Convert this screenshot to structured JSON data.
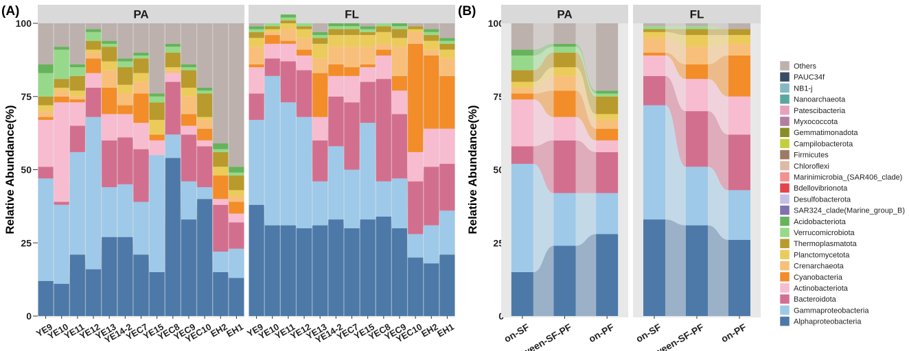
{
  "panel_labels": [
    "(A)",
    "(B)"
  ],
  "colors": {
    "Others": "#bcb1ad",
    "PAUC34f": "#3c4c66",
    "NB1-j": "#86b8c4",
    "Nanoarchaeota": "#5aa79f",
    "Patescibacteria": "#e6a1bd",
    "Myxococcota": "#b27ea1",
    "Gemmatimonadota": "#8a8d26",
    "Campilobacterota": "#c3cf3d",
    "Firmicutes": "#9c7a66",
    "Chloroflexi": "#dbbba6",
    "Marinimicrobia_(SAR406_clade)": "#f2918f",
    "Bdellovibrionota": "#e3454a",
    "Desulfobacterota": "#c3bfe5",
    "SAR324_clade(Marine_group_B)": "#7f72ae",
    "Acidobacteriota": "#67b35b",
    "Verrucomicrobiota": "#97d98a",
    "Thermoplasmatota": "#b99a2d",
    "Planctomycetota": "#ebcc5b",
    "Crenarchaeota": "#f8bf7b",
    "Cyanobacteria": "#f28d2a",
    "Actinobacteriota": "#f7bccf",
    "Bacteroidota": "#d36f8e",
    "Gammaproteobacteria": "#9ec9e8",
    "Alphaproteobacteria": "#4d79a8"
  },
  "chart_data": [
    {
      "type": "area",
      "panel": "(A)",
      "facets": [
        "PA",
        "FL"
      ],
      "ylabel": "Relative Abundance(%)",
      "ylim": [
        0,
        100
      ],
      "yticks": [
        0,
        25,
        50,
        75,
        100
      ],
      "categories": [
        "YE9",
        "YE10",
        "YE11",
        "YE12",
        "YE13",
        "YE14-2",
        "YEC7",
        "YE15",
        "YEC8",
        "YEC9",
        "YEC10",
        "EH2",
        "EH1"
      ],
      "stack_order": [
        "Alphaproteobacteria",
        "Gammaproteobacteria",
        "Bacteroidota",
        "Actinobacteriota",
        "Cyanobacteria",
        "Crenarchaeota",
        "Planctomycetota",
        "Thermoplasmatota",
        "Verrucomicrobiota",
        "Acidobacteriota",
        "Others"
      ],
      "series": {
        "PA": [
          {
            "name": "Alphaproteobacteria",
            "values": [
              12,
              11,
              21,
              16,
              27,
              27,
              21,
              15,
              54,
              33,
              40,
              15,
              13
            ]
          },
          {
            "name": "Gammaproteobacteria",
            "values": [
              35,
              27,
              35,
              52,
              17,
              18,
              18,
              40,
              8,
              13,
              4,
              7,
              10
            ]
          },
          {
            "name": "Bacteroidota",
            "values": [
              4,
              1,
              9,
              10,
              16,
              16,
              18,
              0,
              18,
              16,
              14,
              16,
              9
            ]
          },
          {
            "name": "Actinobacteriota",
            "values": [
              16,
              34,
              8,
              5,
              9,
              8,
              9,
              5,
              3,
              3,
              2,
              2,
              3
            ]
          },
          {
            "name": "Cyanobacteria",
            "values": [
              1,
              2,
              1,
              5,
              9,
              3,
              10,
              2,
              0,
              4,
              4,
              8,
              4
            ]
          },
          {
            "name": "Crenarchaeota",
            "values": [
              2,
              2,
              1,
              2,
              6,
              4,
              4,
              0,
              1,
              6,
              3,
              0,
              2
            ]
          },
          {
            "name": "Planctomycetota",
            "values": [
              2,
              1,
              2,
              1,
              3,
              3,
              3,
              5,
              1,
              3,
              1,
              3,
              2
            ]
          },
          {
            "name": "Thermoplasmatota",
            "values": [
              3,
              3,
              5,
              3,
              5,
              6,
              5,
              6,
              5,
              6,
              8,
              5,
              5
            ]
          },
          {
            "name": "Verrucomicrobiota",
            "values": [
              8,
              10,
              3,
              3,
              1,
              2,
              1,
              2,
              2,
              1,
              1,
              1,
              1
            ]
          },
          {
            "name": "Acidobacteriota",
            "values": [
              3,
              1,
              1,
              1,
              1,
              1,
              1,
              1,
              1,
              1,
              1,
              2,
              2
            ]
          },
          {
            "name": "Others",
            "values": [
              14,
              8,
              14,
              2,
              6,
              12,
              10,
              24,
              7,
              14,
              22,
              41,
              49
            ]
          }
        ],
        "FL": [
          {
            "name": "Alphaproteobacteria",
            "values": [
              38,
              31,
              31,
              30,
              31,
              33,
              30,
              33,
              34,
              30,
              20,
              18,
              21
            ]
          },
          {
            "name": "Gammaproteobacteria",
            "values": [
              29,
              51,
              42,
              38,
              15,
              25,
              20,
              33,
              12,
              17,
              8,
              13,
              15
            ]
          },
          {
            "name": "Bacteroidota",
            "values": [
              9,
              6,
              14,
              16,
              14,
              17,
              23,
              14,
              35,
              22,
              18,
              20,
              16
            ]
          },
          {
            "name": "Actinobacteriota",
            "values": [
              9,
              5,
              6,
              5,
              8,
              7,
              9,
              5,
              8,
              8,
              10,
              13,
              12
            ]
          },
          {
            "name": "Cyanobacteria",
            "values": [
              1,
              3,
              1,
              2,
              15,
              4,
              3,
              1,
              2,
              5,
              37,
              25,
              18
            ]
          },
          {
            "name": "Crenarchaeota",
            "values": [
              6,
              1,
              4,
              4,
              5,
              6,
              7,
              6,
              2,
              10,
              4,
              2,
              6
            ]
          },
          {
            "name": "Planctomycetota",
            "values": [
              3,
              1,
              2,
              3,
              5,
              4,
              4,
              4,
              4,
              3,
              1,
              3,
              3
            ]
          },
          {
            "name": "Thermoplasmatota",
            "values": [
              2,
              1,
              1,
              1,
              2,
              2,
              2,
              1,
              2,
              3,
              1,
              2,
              2
            ]
          },
          {
            "name": "Verrucomicrobiota",
            "values": [
              1,
              1,
              1,
              1,
              1,
              1,
              1,
              1,
              1,
              1,
              0,
              1,
              1
            ]
          },
          {
            "name": "Acidobacteriota",
            "values": [
              1,
              0,
              1,
              0,
              1,
              1,
              1,
              1,
              0,
              1,
              0,
              1,
              1
            ]
          },
          {
            "name": "Others",
            "values": [
              1,
              0,
              0,
              0,
              3,
              0,
              0,
              1,
              0,
              0,
              1,
              2,
              5
            ]
          }
        ]
      }
    },
    {
      "type": "area",
      "panel": "(B)",
      "facets": [
        "PA",
        "FL"
      ],
      "ylabel": "Relative Abundance(%)",
      "ylim": [
        0,
        100
      ],
      "yticks": [
        0,
        25,
        50,
        75,
        100
      ],
      "categories": [
        "on-SF",
        "between-SF-PF",
        "on-PF"
      ],
      "stack_order": [
        "Alphaproteobacteria",
        "Gammaproteobacteria",
        "Bacteroidota",
        "Actinobacteriota",
        "Cyanobacteria",
        "Crenarchaeota",
        "Planctomycetota",
        "Thermoplasmatota",
        "Verrucomicrobiota",
        "Acidobacteriota",
        "Others"
      ],
      "series": {
        "PA": [
          {
            "name": "Alphaproteobacteria",
            "values": [
              15,
              24,
              28
            ]
          },
          {
            "name": "Gammaproteobacteria",
            "values": [
              37,
              18,
              14
            ]
          },
          {
            "name": "Bacteroidota",
            "values": [
              6,
              18,
              14
            ]
          },
          {
            "name": "Actinobacteriota",
            "values": [
              16,
              8,
              4
            ]
          },
          {
            "name": "Cyanobacteria",
            "values": [
              2,
              9,
              4
            ]
          },
          {
            "name": "Crenarchaeota",
            "values": [
              2,
              5,
              3
            ]
          },
          {
            "name": "Planctomycetota",
            "values": [
              2,
              3,
              2
            ]
          },
          {
            "name": "Thermoplasmatota",
            "values": [
              4,
              5,
              6
            ]
          },
          {
            "name": "Verrucomicrobiota",
            "values": [
              5,
              2,
              1
            ]
          },
          {
            "name": "Acidobacteriota",
            "values": [
              2,
              1,
              1
            ]
          },
          {
            "name": "Others",
            "values": [
              9,
              7,
              23
            ]
          }
        ],
        "FL": [
          {
            "name": "Alphaproteobacteria",
            "values": [
              33,
              31,
              26
            ]
          },
          {
            "name": "Gammaproteobacteria",
            "values": [
              39,
              20,
              17
            ]
          },
          {
            "name": "Bacteroidota",
            "values": [
              10,
              19,
              19
            ]
          },
          {
            "name": "Actinobacteriota",
            "values": [
              7,
              11,
              13
            ]
          },
          {
            "name": "Cyanobacteria",
            "values": [
              1,
              5,
              14
            ]
          },
          {
            "name": "Crenarchaeota",
            "values": [
              5,
              6,
              4
            ]
          },
          {
            "name": "Planctomycetota",
            "values": [
              2,
              4,
              3
            ]
          },
          {
            "name": "Thermoplasmatota",
            "values": [
              1,
              2,
              2
            ]
          },
          {
            "name": "Verrucomicrobiota",
            "values": [
              1,
              1,
              0
            ]
          },
          {
            "name": "Acidobacteriota",
            "values": [
              0,
              0,
              0
            ]
          },
          {
            "name": "Others",
            "values": [
              1,
              1,
              2
            ]
          }
        ]
      }
    }
  ],
  "legend": {
    "entries": [
      "Others",
      "PAUC34f",
      "NB1-j",
      "Nanoarchaeota",
      "Patescibacteria",
      "Myxococcota",
      "Gemmatimonadota",
      "Campilobacterota",
      "Firmicutes",
      "Chloroflexi",
      "Marinimicrobia_(SAR406_clade)",
      "Bdellovibrionota",
      "Desulfobacterota",
      "SAR324_clade(Marine_group_B)",
      "Acidobacteriota",
      "Verrucomicrobiota",
      "Thermoplasmatota",
      "Planctomycetota",
      "Crenarchaeota",
      "Cyanobacteria",
      "Actinobacteriota",
      "Bacteroidota",
      "Gammaproteobacteria",
      "Alphaproteobacteria"
    ]
  }
}
